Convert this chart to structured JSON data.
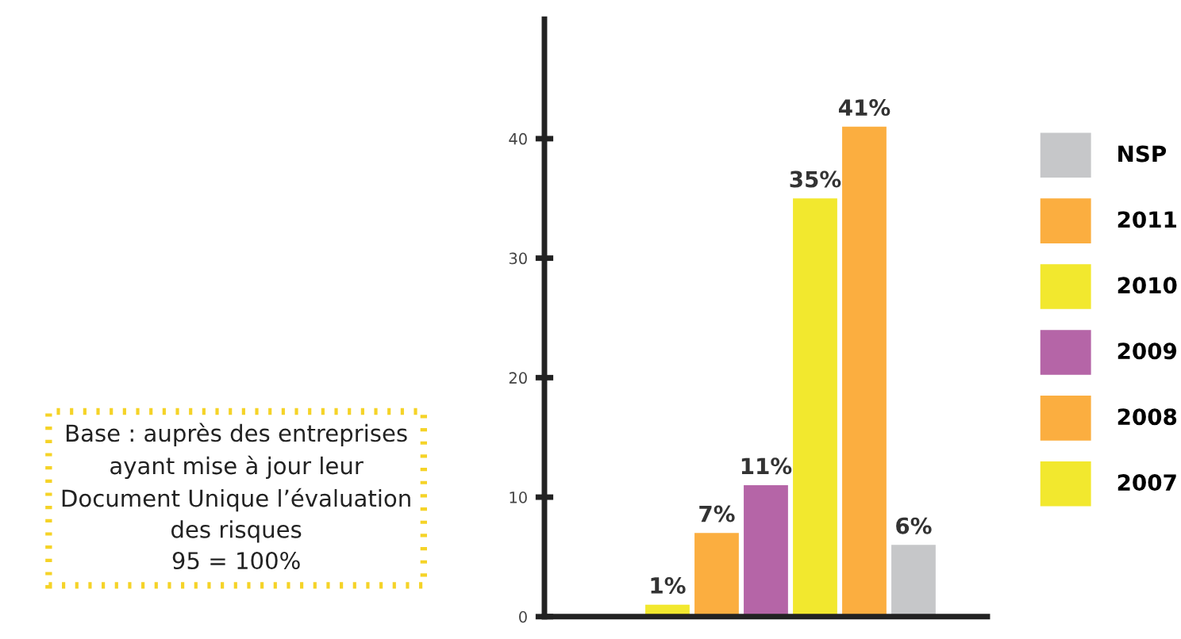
{
  "chart_data": {
    "type": "bar",
    "categories": [
      null,
      null,
      null,
      null,
      null,
      null,
      null,
      null,
      null
    ],
    "series": [
      {
        "name": "2007",
        "color": "#f2e82e",
        "values": [
          null,
          null,
          1,
          null,
          null,
          null,
          null,
          null,
          null
        ],
        "value_labels": [
          null,
          null,
          "1%",
          null,
          null,
          null,
          null,
          null,
          null
        ]
      },
      {
        "name": "2008",
        "color": "#fbae40",
        "values": [
          null,
          null,
          null,
          7,
          null,
          null,
          null,
          null,
          null
        ],
        "value_labels": [
          null,
          null,
          null,
          "7%",
          null,
          null,
          null,
          null,
          null
        ]
      },
      {
        "name": "2009",
        "color": "#b565a7",
        "values": [
          null,
          null,
          null,
          null,
          11,
          null,
          null,
          null,
          null
        ],
        "value_labels": [
          null,
          null,
          null,
          null,
          "11%",
          null,
          null,
          null,
          null
        ]
      },
      {
        "name": "2010",
        "color": "#f2e82e",
        "values": [
          null,
          null,
          null,
          null,
          null,
          35,
          null,
          null,
          null
        ],
        "value_labels": [
          null,
          null,
          null,
          null,
          null,
          "35%",
          null,
          null,
          null
        ]
      },
      {
        "name": "2011",
        "color": "#fbae40",
        "values": [
          null,
          null,
          null,
          null,
          null,
          null,
          41,
          null,
          null
        ],
        "value_labels": [
          null,
          null,
          null,
          null,
          null,
          null,
          "41%",
          null,
          null
        ]
      },
      {
        "name": "NSP",
        "color": "#c6c7c9",
        "values": [
          null,
          null,
          null,
          null,
          null,
          null,
          null,
          6,
          null
        ],
        "value_labels": [
          null,
          null,
          null,
          null,
          null,
          null,
          null,
          "6%",
          null
        ]
      }
    ],
    "ylim": [
      0,
      50
    ],
    "yticks": [
      0,
      10,
      20,
      30,
      40
    ],
    "grid": false,
    "legend": "right",
    "annotations": [
      "Base : auprès des entreprises\nayant mise à jour leur\nDocument Unique l’évaluation\ndes risques\n95 = 100%"
    ]
  }
}
